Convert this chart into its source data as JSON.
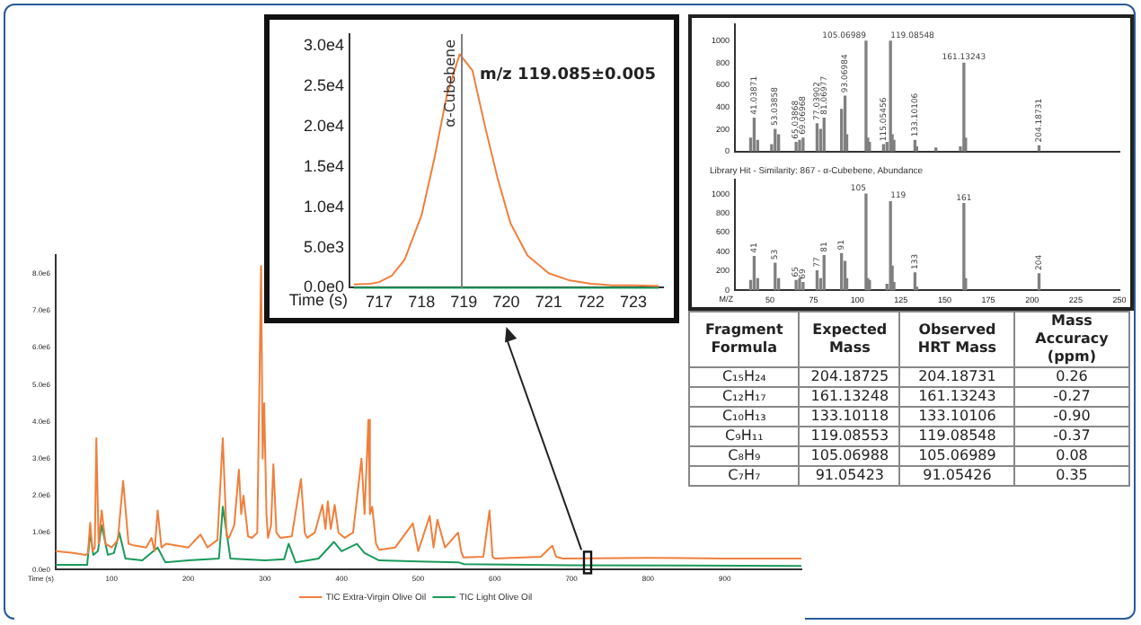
{
  "chart_data": [
    {
      "type": "line",
      "xlabel": "Time (s)",
      "xlim": [
        27,
        1000
      ],
      "xticks": [
        100,
        200,
        300,
        400,
        500,
        600,
        700,
        800,
        900
      ],
      "ylim": [
        0,
        8500000
      ],
      "yticks": [
        {
          "value": 0,
          "label": "0.0e0"
        },
        {
          "value": 1000000,
          "label": "1.0e6"
        },
        {
          "value": 2000000,
          "label": "2.0e6"
        },
        {
          "value": 3000000,
          "label": "3.0e6"
        },
        {
          "value": 4000000,
          "label": "4.0e6"
        },
        {
          "value": 5000000,
          "label": "5.0e6"
        },
        {
          "value": 6000000,
          "label": "6.0e6"
        },
        {
          "value": 7000000,
          "label": "7.0e6"
        },
        {
          "value": 8000000,
          "label": "8.0e6"
        }
      ],
      "grid": false,
      "legend": "bottom",
      "marker": "none",
      "line_style": "solid",
      "series": [
        {
          "name": "TIC Extra-Virgin Olive Oil",
          "color": "#f07f3c",
          "x": [
            27,
            50,
            66,
            69,
            72,
            75,
            78,
            80,
            83,
            87,
            92,
            100,
            108,
            115,
            122,
            130,
            145,
            152,
            156,
            160,
            165,
            171,
            200,
            216,
            225,
            238,
            245,
            250,
            253,
            260,
            266,
            269,
            272,
            278,
            283,
            290,
            295,
            297,
            299,
            302,
            304,
            308,
            311,
            315,
            320,
            335,
            347,
            352,
            355,
            365,
            375,
            379,
            382,
            386,
            391,
            396,
            404,
            415,
            426,
            430,
            435,
            437,
            440,
            445,
            449,
            470,
            493,
            500,
            515,
            520,
            525,
            535,
            552,
            556,
            559,
            585,
            593,
            597,
            600,
            660,
            675,
            680,
            689,
            800,
            900,
            1000
          ],
          "values": [
            500000,
            450000,
            400000,
            450000,
            1270000,
            500000,
            600000,
            3550000,
            700000,
            1600000,
            700000,
            600000,
            800000,
            2400000,
            700000,
            650000,
            600000,
            860000,
            500000,
            1600000,
            600000,
            700000,
            600000,
            950000,
            600000,
            800000,
            3550000,
            900000,
            860000,
            1200000,
            2700000,
            1500000,
            2000000,
            900000,
            860000,
            1000000,
            8200000,
            3000000,
            4500000,
            1500000,
            860000,
            1200000,
            2850000,
            1000000,
            860000,
            900000,
            2450000,
            1000000,
            860000,
            1000000,
            1750000,
            1100000,
            1850000,
            1100000,
            1750000,
            1000000,
            860000,
            1000000,
            3000000,
            1500000,
            4050000,
            1500000,
            1700000,
            700000,
            540000,
            600000,
            1250000,
            500000,
            1450000,
            600000,
            1350000,
            600000,
            1000000,
            500000,
            330000,
            350000,
            1600000,
            350000,
            300000,
            350000,
            650000,
            350000,
            300000,
            320000,
            300000,
            300000
          ]
        },
        {
          "name": "TIC Light Olive Oil",
          "color": "#1a9a5a",
          "x": [
            27,
            68,
            72,
            76,
            82,
            87,
            95,
            103,
            110,
            118,
            140,
            160,
            170,
            200,
            240,
            245,
            255,
            300,
            325,
            331,
            340,
            370,
            390,
            400,
            420,
            430,
            449,
            500,
            552,
            560,
            700,
            1000
          ],
          "values": [
            130000,
            130000,
            1000000,
            400000,
            500000,
            1200000,
            400000,
            450000,
            1000000,
            300000,
            250000,
            600000,
            200000,
            250000,
            300000,
            1700000,
            300000,
            250000,
            280000,
            700000,
            200000,
            300000,
            750000,
            500000,
            700000,
            450000,
            250000,
            220000,
            200000,
            150000,
            120000,
            100000
          ]
        }
      ]
    },
    {
      "type": "line",
      "xlabel": "Time (s)",
      "xlim": [
        716.3,
        723.7
      ],
      "xticks": [
        717,
        718,
        719,
        720,
        721,
        722,
        723
      ],
      "ylim": [
        0,
        31500
      ],
      "yticks": [
        {
          "value": 0,
          "label": "0.0e0"
        },
        {
          "value": 5000,
          "label": "5.0e3"
        },
        {
          "value": 10000,
          "label": "1.0e4"
        },
        {
          "value": 15000,
          "label": "1.5e4"
        },
        {
          "value": 20000,
          "label": "2.0e4"
        },
        {
          "value": 25000,
          "label": "2.5e4"
        },
        {
          "value": 30000,
          "label": "3.0e4"
        }
      ],
      "grid": false,
      "marker": "none",
      "line_style": "solid",
      "annotations": [
        "m/z 119.085±0.005"
      ],
      "ref_lines": [
        {
          "axis": "x",
          "value": 718.95,
          "label": "α-Cubebene",
          "color": "#808080"
        }
      ],
      "series": [
        {
          "color": "#f07f3c",
          "x": [
            716.4,
            716.8,
            717.0,
            717.3,
            717.6,
            718.0,
            718.3,
            718.6,
            718.9,
            719.2,
            719.5,
            719.8,
            720.1,
            720.5,
            721.0,
            721.5,
            722.0,
            722.5,
            723.0,
            723.6
          ],
          "values": [
            400,
            500,
            700,
            1500,
            3500,
            9000,
            16000,
            24000,
            29000,
            27000,
            20000,
            13500,
            8000,
            4000,
            1800,
            900,
            500,
            300,
            300,
            200
          ]
        },
        {
          "color": "#1a9a5a",
          "x": [
            716.4,
            723.6
          ],
          "values": [
            0,
            0
          ]
        }
      ]
    },
    {
      "type": "bar",
      "tick_labels": "y",
      "xlim": [
        30,
        250
      ],
      "xticks": [
        50,
        75,
        100,
        125,
        150,
        175,
        200,
        225,
        250
      ],
      "ylim": [
        0,
        1150
      ],
      "yticks": [
        0,
        200,
        400,
        600,
        800,
        1000
      ],
      "grid": false,
      "color": "#808080",
      "x": [
        39,
        41,
        43,
        51,
        53,
        55,
        65,
        67,
        69,
        77,
        79,
        81,
        91,
        93,
        94,
        105,
        106,
        107,
        115,
        117,
        119,
        120,
        121,
        133,
        134,
        145,
        159,
        161,
        162,
        204
      ],
      "values": [
        120,
        300,
        100,
        60,
        200,
        150,
        80,
        100,
        120,
        250,
        200,
        300,
        380,
        500,
        150,
        1000,
        120,
        80,
        60,
        80,
        1000,
        150,
        100,
        100,
        40,
        30,
        40,
        800,
        120,
        50
      ],
      "annotations": [
        {
          "text": "41.03871",
          "x": 41,
          "y": 300
        },
        {
          "text": "53.03858",
          "x": 53,
          "y": 200
        },
        {
          "text": "65.03868",
          "x": 65,
          "y": 80
        },
        {
          "text": "69.06968",
          "x": 69,
          "y": 120
        },
        {
          "text": "77.03902",
          "x": 77,
          "y": 250
        },
        {
          "text": "81.06977",
          "x": 81,
          "y": 300
        },
        {
          "text": "93.06984",
          "x": 93,
          "y": 500
        },
        {
          "text": "105.06989",
          "x": 105,
          "y": 1000
        },
        {
          "text": "115.05456",
          "x": 115,
          "y": 60
        },
        {
          "text": "119.08548",
          "x": 119,
          "y": 1000
        },
        {
          "text": "133.10106",
          "x": 133,
          "y": 100
        },
        {
          "text": "161.13243",
          "x": 161,
          "y": 800
        },
        {
          "text": "204.18731",
          "x": 204,
          "y": 50
        }
      ]
    },
    {
      "type": "bar",
      "title": "Library Hit - Similarity: 867 - α-Cubebene, Abundance",
      "xlabel": "M/Z",
      "xlim": [
        30,
        250
      ],
      "xticks": [
        50,
        75,
        100,
        125,
        150,
        175,
        200,
        225,
        250
      ],
      "ylim": [
        0,
        1150
      ],
      "yticks": [
        0,
        200,
        400,
        600,
        800,
        1000
      ],
      "grid": false,
      "color": "#808080",
      "x": [
        39,
        41,
        43,
        53,
        55,
        65,
        67,
        69,
        77,
        79,
        81,
        91,
        93,
        94,
        105,
        106,
        107,
        117,
        119,
        120,
        121,
        133,
        134,
        161,
        162,
        204
      ],
      "values": [
        100,
        350,
        120,
        280,
        120,
        100,
        120,
        80,
        200,
        120,
        360,
        380,
        300,
        120,
        1000,
        120,
        100,
        60,
        920,
        250,
        80,
        180,
        30,
        900,
        120,
        170
      ],
      "annotations": [
        {
          "text": "41",
          "x": 41,
          "y": 350
        },
        {
          "text": "53",
          "x": 53,
          "y": 280
        },
        {
          "text": "65",
          "x": 65,
          "y": 100
        },
        {
          "text": "69",
          "x": 69,
          "y": 80
        },
        {
          "text": "77",
          "x": 77,
          "y": 200
        },
        {
          "text": "81",
          "x": 81,
          "y": 360
        },
        {
          "text": "91",
          "x": 91,
          "y": 380
        },
        {
          "text": "105",
          "x": 105,
          "y": 1000
        },
        {
          "text": "119",
          "x": 119,
          "y": 920
        },
        {
          "text": "133",
          "x": 133,
          "y": 180
        },
        {
          "text": "161",
          "x": 161,
          "y": 900
        },
        {
          "text": "204",
          "x": 204,
          "y": 170
        }
      ]
    },
    {
      "type": "other",
      "categories": [
        "Fragment Formula",
        "Expected Mass",
        "Observed HRT Mass",
        "Mass Accuracy (ppm)"
      ],
      "cell_labels": [
        [
          "C₁₅H₂₄",
          "204.18725",
          "204.18731",
          "0.26"
        ],
        [
          "C₁₂H₁₇",
          "161.13248",
          "161.13243",
          "-0.27"
        ],
        [
          "C₁₀H₁₃",
          "133.10118",
          "133.10106",
          "-0.90"
        ],
        [
          "C₉H₁₁",
          "119.08553",
          "119.08548",
          "-0.37"
        ],
        [
          "C₈H₉",
          "105.06988",
          "105.06989",
          "0.08"
        ],
        [
          "C₇H₇",
          "91.05423",
          "91.05426",
          "0.35"
        ]
      ]
    }
  ]
}
